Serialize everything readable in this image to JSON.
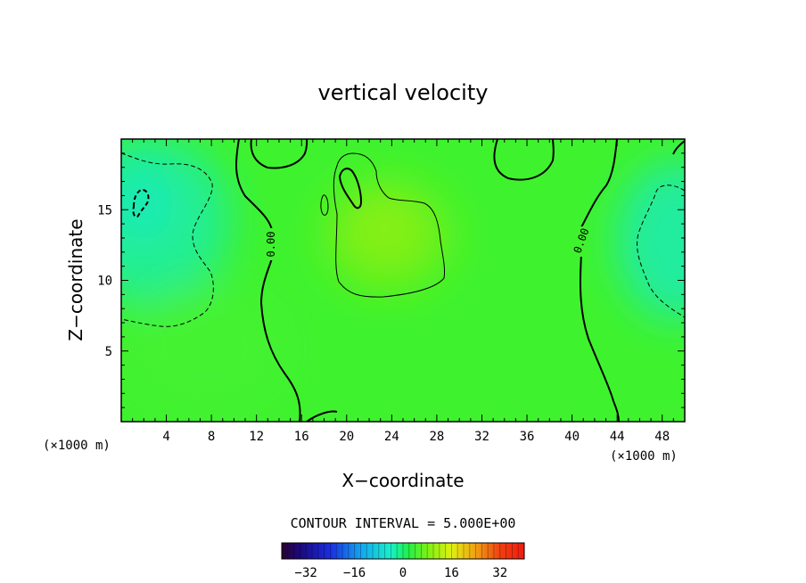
{
  "chart_data": {
    "type": "heatmap",
    "title": "vertical velocity",
    "xlabel": "X−coordinate",
    "ylabel": "Z−coordinate",
    "x_unit_left": "(×1000 m)",
    "x_unit_right": "(×1000 m)",
    "xlim": [
      0,
      50
    ],
    "ylim": [
      0,
      20
    ],
    "x_ticks": [
      4,
      8,
      12,
      16,
      20,
      24,
      28,
      32,
      36,
      40,
      44,
      48
    ],
    "y_ticks": [
      5,
      10,
      15
    ],
    "contour_interval_text": "CONTOUR INTERVAL = 5.000E+00",
    "contour_labels": [
      "0.00",
      "0.00"
    ],
    "colorbar": {
      "min": -40,
      "max": 40,
      "ticks": [
        "−32",
        "−16",
        "0",
        "16",
        "32"
      ],
      "tick_values": [
        -32,
        -16,
        0,
        16,
        32
      ]
    },
    "field_features": [
      {
        "x": 1.5,
        "z": 15.5,
        "value": -8
      },
      {
        "x": 49,
        "z": 12,
        "value": -7
      },
      {
        "x": 20.5,
        "z": 17,
        "value": 10
      },
      {
        "x": 23,
        "z": 12,
        "value": 7
      }
    ]
  }
}
